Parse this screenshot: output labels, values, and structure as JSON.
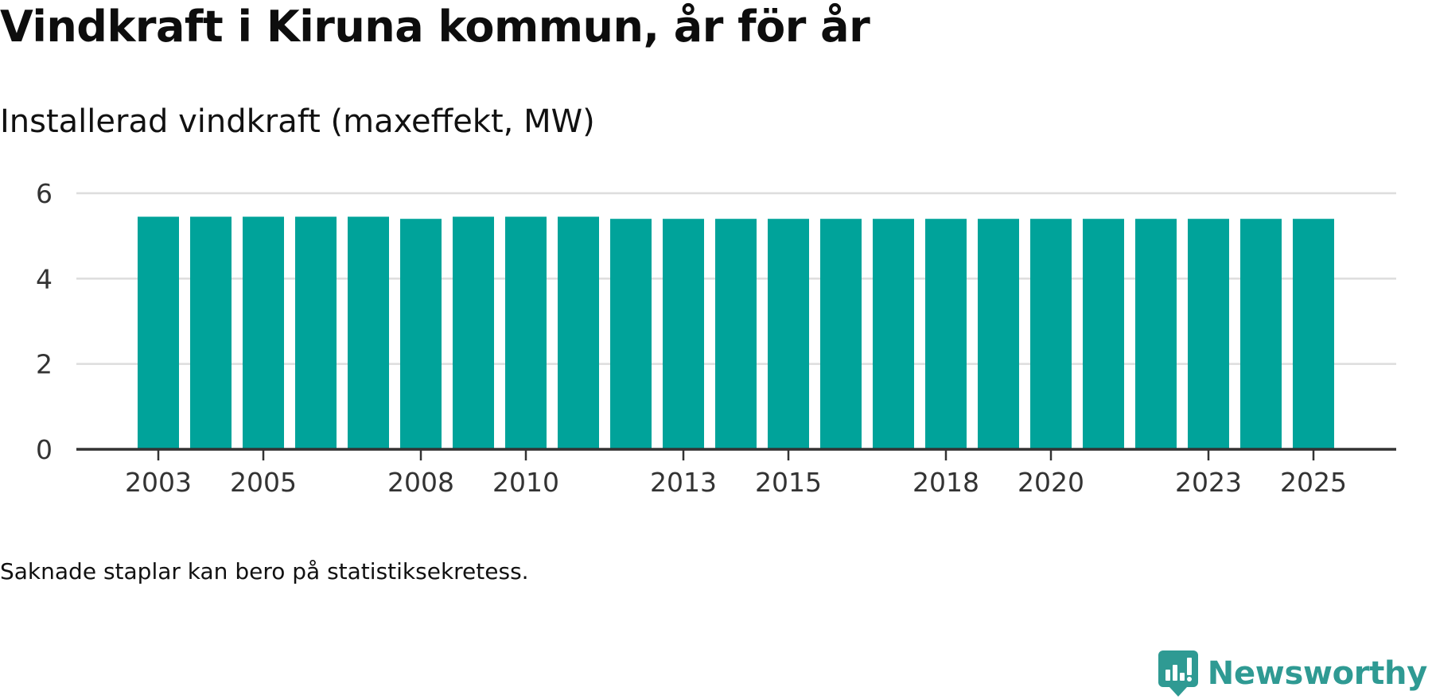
{
  "title": "Vindkraft i Kiruna kommun, år för år",
  "subtitle": "Installerad vindkraft (maxeffekt, MW)",
  "note": "Saknade staplar kan bero på statistiksekretess.",
  "brand": {
    "name": "Newsworthy",
    "logo_icon": "newsworthy-logo-icon"
  },
  "colors": {
    "bar": "#00a39a",
    "grid": "#dddddd",
    "axis": "#333333",
    "brand": "#2f9a93"
  },
  "chart_data": {
    "type": "bar",
    "title": "Installerad vindkraft (maxeffekt, MW)",
    "xlabel": "",
    "ylabel": "",
    "ylim": [
      0,
      6
    ],
    "yticks": [
      0,
      2,
      4,
      6
    ],
    "grid": true,
    "categories": [
      "2003",
      "2004",
      "2005",
      "2006",
      "2007",
      "2008",
      "2009",
      "2010",
      "2011",
      "2012",
      "2013",
      "2014",
      "2015",
      "2016",
      "2017",
      "2018",
      "2019",
      "2020",
      "2021",
      "2022",
      "2023",
      "2024",
      "2025"
    ],
    "xtick_labels": [
      "2003",
      "2005",
      "2008",
      "2010",
      "2013",
      "2015",
      "2018",
      "2020",
      "2023",
      "2025"
    ],
    "values": [
      5.45,
      5.45,
      5.45,
      5.45,
      5.45,
      5.4,
      5.45,
      5.45,
      5.45,
      5.4,
      5.4,
      5.4,
      5.4,
      5.4,
      5.4,
      5.4,
      5.4,
      5.4,
      5.4,
      5.4,
      5.4,
      5.4,
      5.4
    ]
  }
}
